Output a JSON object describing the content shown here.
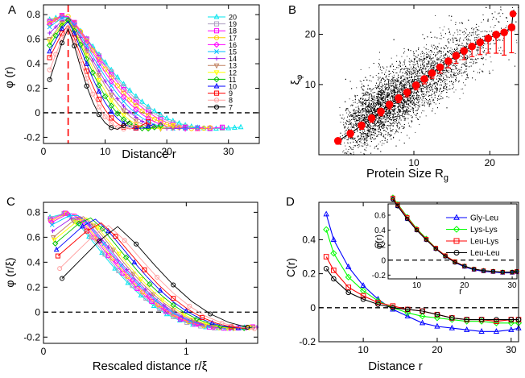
{
  "figure": {
    "panels": [
      {
        "id": "A",
        "letter": "A",
        "xlabel": "Distance r",
        "ylabel": "φ (r)"
      },
      {
        "id": "B",
        "letter": "B",
        "xlabel": "Protein Size R",
        "xlabel_sub": "g",
        "ylabel": "ξ",
        "ylabel_sub": "φ"
      },
      {
        "id": "C",
        "letter": "C",
        "xlabel": "Rescaled distance r/ξ",
        "ylabel": "φ  (r/ξ)"
      },
      {
        "id": "D",
        "letter": "D",
        "xlabel": "Distance r",
        "ylabel": "C(r)",
        "inset_xlabel": "r",
        "inset_ylabel": "φ(r)"
      }
    ]
  },
  "chart_data": [
    {
      "panel": "A",
      "type": "line",
      "xlabel": "Distance r",
      "ylabel": "φ (r)",
      "xlim": [
        0,
        35
      ],
      "ylim": [
        -0.25,
        0.88
      ],
      "xticks": [
        0,
        10,
        20,
        30
      ],
      "yticks": [
        -0.2,
        0,
        0.2,
        0.4,
        0.6,
        0.8
      ],
      "ytick_labels": [
        "-0.2",
        "0",
        "0.2",
        "0.4",
        "0.6",
        "0.8"
      ],
      "reference_lines": [
        {
          "type": "hline",
          "y": 0,
          "style": "dashed",
          "color": "#000000"
        },
        {
          "type": "vline",
          "x": 4,
          "style": "dashed",
          "color": "#ff0000"
        }
      ],
      "legend_position": "top-right",
      "series": [
        {
          "name": "20",
          "color": "#00e5ee",
          "marker": "triangle",
          "peak": 0.8,
          "xi": 20,
          "start": 0.76
        },
        {
          "name": "19",
          "color": "#ad9ec1",
          "marker": "square",
          "peak": 0.81,
          "xi": 19,
          "start": 0.75
        },
        {
          "name": "18",
          "color": "#ff00ff",
          "marker": "square",
          "peak": 0.82,
          "xi": 18,
          "start": 0.74
        },
        {
          "name": "17",
          "color": "#ffcc00",
          "marker": "circle",
          "peak": 0.82,
          "xi": 17,
          "start": 0.73
        },
        {
          "name": "16",
          "color": "#ff00ff",
          "marker": "diamond",
          "peak": 0.82,
          "xi": 16,
          "start": 0.72
        },
        {
          "name": "15",
          "color": "#00bfff",
          "marker": "x",
          "peak": 0.81,
          "xi": 15,
          "start": 0.7
        },
        {
          "name": "14",
          "color": "#a020f0",
          "marker": "plus",
          "peak": 0.8,
          "xi": 14,
          "start": 0.65
        },
        {
          "name": "13",
          "color": "#c08060",
          "marker": "triangle-down",
          "peak": 0.8,
          "xi": 13,
          "start": 0.6
        },
        {
          "name": "12",
          "color": "#ffff00",
          "marker": "triangle-down",
          "peak": 0.79,
          "xi": 12,
          "start": 0.58
        },
        {
          "name": "11",
          "color": "#00c000",
          "marker": "diamond",
          "peak": 0.79,
          "xi": 11,
          "start": 0.55
        },
        {
          "name": "10",
          "color": "#0000ff",
          "marker": "triangle",
          "peak": 0.78,
          "xi": 10,
          "start": 0.5
        },
        {
          "name": "9",
          "color": "#ff0000",
          "marker": "square",
          "peak": 0.75,
          "xi": 9,
          "start": 0.45
        },
        {
          "name": "8",
          "color": "#ffa0a0",
          "marker": "circle",
          "peak": 0.73,
          "xi": 8,
          "start": 0.35
        },
        {
          "name": "7",
          "color": "#000000",
          "marker": "circle",
          "peak": 0.72,
          "xi": 7,
          "start": 0.27
        }
      ]
    },
    {
      "panel": "B",
      "type": "scatter",
      "xlabel": "Protein Size Rg",
      "ylabel": "ξφ",
      "xscale": "log",
      "yscale": "log",
      "xlim": [
        4.2,
        26
      ],
      "ylim": [
        3.8,
        30
      ],
      "xticks": [
        10,
        20
      ],
      "yticks": [
        10,
        20
      ],
      "scatter_points_approx": 9000,
      "scatter_color": "#000000",
      "binned_series": {
        "color": "#ff0000",
        "x": [
          5.0,
          5.6,
          6.2,
          6.8,
          7.4,
          8.0,
          8.7,
          9.4,
          10.2,
          11.0,
          11.8,
          12.7,
          13.7,
          14.7,
          15.8,
          17.0,
          18.3,
          19.7,
          21.2,
          22.8,
          24.4
        ],
        "y": [
          4.6,
          5.1,
          5.7,
          6.3,
          6.9,
          7.6,
          8.3,
          9.0,
          9.9,
          10.8,
          11.7,
          12.7,
          13.8,
          14.9,
          15.9,
          16.9,
          17.9,
          18.9,
          19.9,
          20.5,
          22.0
        ],
        "err_low": [
          0.2,
          0.25,
          0.3,
          0.35,
          0.4,
          0.45,
          0.5,
          0.55,
          0.6,
          0.7,
          0.8,
          1.0,
          1.2,
          1.5,
          1.8,
          2.2,
          2.8,
          3.5,
          4.5,
          5.5,
          6.5
        ],
        "err_high": [
          0.1,
          0.1,
          0.1,
          0.1,
          0.1,
          0.1,
          0.1,
          0.1,
          0.1,
          0.1,
          0.1,
          0.1,
          0.1,
          0.1,
          0.1,
          0.1,
          0.1,
          0.1,
          0.1,
          0.1,
          0.1
        ],
        "outlier": {
          "x": 24.7,
          "y": 26.5
        }
      }
    },
    {
      "panel": "C",
      "type": "line",
      "xlabel": "Rescaled distance r/ξ",
      "ylabel": "φ (r/ξ)",
      "xlim": [
        0,
        1.5
      ],
      "ylim": [
        -0.25,
        0.88
      ],
      "xticks": [
        0,
        1
      ],
      "yticks": [
        -0.2,
        0,
        0.2,
        0.4,
        0.6,
        0.8
      ],
      "ytick_labels": [
        "-0.2",
        "0",
        "0.2",
        "0.4",
        "0.6",
        "0.8"
      ],
      "reference_lines": [
        {
          "type": "hline",
          "y": 0,
          "style": "dashed",
          "color": "#000000"
        }
      ],
      "note": "Same 14 series as panel A, with distance rescaled by ξ."
    },
    {
      "panel": "D",
      "type": "line",
      "xlabel": "Distance r",
      "ylabel": "C(r)",
      "xlim": [
        4,
        31
      ],
      "ylim": [
        -0.2,
        0.62
      ],
      "xticks": [
        10,
        20,
        30
      ],
      "yticks": [
        -0.2,
        0,
        0.2,
        0.4
      ],
      "ytick_labels": [
        "-0.2",
        "0",
        "0.2",
        "0.4"
      ],
      "reference_lines": [
        {
          "type": "hline",
          "y": 0,
          "style": "dashed",
          "color": "#000000"
        }
      ],
      "legend_position": "inset-right",
      "x": [
        5,
        6,
        8,
        10,
        12,
        14,
        16,
        18,
        20,
        22,
        24,
        26,
        28,
        30,
        31
      ],
      "series": [
        {
          "name": "Gly-Leu",
          "color": "#0000ff",
          "marker": "triangle",
          "values": [
            0.55,
            0.4,
            0.24,
            0.13,
            0.05,
            -0.01,
            -0.05,
            -0.09,
            -0.11,
            -0.12,
            -0.13,
            -0.14,
            -0.14,
            -0.13,
            -0.12
          ]
        },
        {
          "name": "Lys-Lys",
          "color": "#00ff00",
          "marker": "diamond",
          "values": [
            0.46,
            0.32,
            0.18,
            0.1,
            0.04,
            0.0,
            -0.03,
            -0.05,
            -0.06,
            -0.07,
            -0.08,
            -0.08,
            -0.09,
            -0.09,
            -0.09
          ]
        },
        {
          "name": "Leu-Lys",
          "color": "#ff0000",
          "marker": "square",
          "values": [
            0.3,
            0.22,
            0.12,
            0.07,
            0.03,
            0.01,
            -0.01,
            -0.02,
            -0.04,
            -0.06,
            -0.07,
            -0.07,
            -0.08,
            -0.07,
            -0.07
          ]
        },
        {
          "name": "Leu-Leu",
          "color": "#000000",
          "marker": "circle",
          "values": [
            0.23,
            0.17,
            0.09,
            0.05,
            0.02,
            0.0,
            -0.01,
            -0.02,
            -0.04,
            -0.06,
            -0.07,
            -0.07,
            -0.07,
            -0.07,
            -0.07
          ]
        }
      ],
      "inset": {
        "xlabel": "r",
        "ylabel": "φ(r)",
        "xlim": [
          4,
          31
        ],
        "ylim": [
          -0.25,
          0.75
        ],
        "xticks": [
          10,
          20,
          30
        ],
        "yticks": [
          -0.2,
          0,
          0.2,
          0.4,
          0.6
        ],
        "ytick_labels": [
          "-0.2",
          "0",
          "0.2",
          "0.4",
          "0.6"
        ],
        "x": [
          5,
          6,
          8,
          10,
          12,
          14,
          16,
          18,
          20,
          22,
          24,
          26,
          28,
          30,
          31
        ],
        "series": [
          {
            "name": "Gly-Leu",
            "color": "#0000ff",
            "values": [
              0.82,
              0.72,
              0.55,
              0.4,
              0.27,
              0.15,
              0.05,
              -0.03,
              -0.09,
              -0.13,
              -0.15,
              -0.16,
              -0.17,
              -0.17,
              -0.16
            ]
          },
          {
            "name": "Lys-Lys",
            "color": "#00ff00",
            "values": [
              0.84,
              0.75,
              0.58,
              0.42,
              0.29,
              0.16,
              0.06,
              -0.02,
              -0.08,
              -0.12,
              -0.14,
              -0.15,
              -0.16,
              -0.16,
              -0.15
            ]
          },
          {
            "name": "Leu-Lys",
            "color": "#ff0000",
            "values": [
              0.83,
              0.74,
              0.57,
              0.41,
              0.28,
              0.16,
              0.06,
              -0.02,
              -0.08,
              -0.12,
              -0.14,
              -0.15,
              -0.16,
              -0.16,
              -0.15
            ]
          },
          {
            "name": "Leu-Leu",
            "color": "#000000",
            "values": [
              0.81,
              0.72,
              0.55,
              0.4,
              0.27,
              0.15,
              0.05,
              -0.03,
              -0.08,
              -0.12,
              -0.14,
              -0.15,
              -0.16,
              -0.16,
              -0.15
            ]
          }
        ]
      }
    }
  ]
}
